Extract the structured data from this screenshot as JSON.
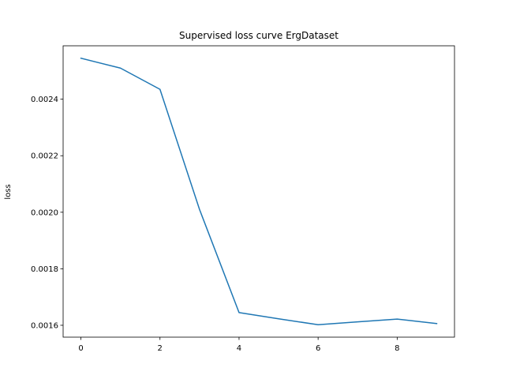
{
  "chart_data": {
    "type": "line",
    "title": "Supervised loss curve ErgDataset",
    "xlabel": "",
    "ylabel": "loss",
    "x": [
      0,
      1,
      2,
      3,
      4,
      5,
      6,
      7,
      8,
      9
    ],
    "series": [
      {
        "color": "#1f77b4",
        "values": [
          0.002545,
          0.00251,
          0.002435,
          0.00201,
          0.001645,
          0.001623,
          0.001602,
          0.001612,
          0.001622,
          0.001606
        ]
      }
    ],
    "xlim": [
      -0.45,
      9.45
    ],
    "ylim": [
      0.001558,
      0.002589
    ],
    "xticks": [
      0,
      2,
      4,
      6,
      8
    ],
    "xtick_labels": [
      "0",
      "2",
      "4",
      "6",
      "8"
    ],
    "yticks": [
      0.0016,
      0.0018,
      0.002,
      0.0022,
      0.0024
    ],
    "ytick_labels": [
      "0.0016",
      "0.0018",
      "0.0020",
      "0.0022",
      "0.0024"
    ],
    "grid": false,
    "legend": false
  }
}
